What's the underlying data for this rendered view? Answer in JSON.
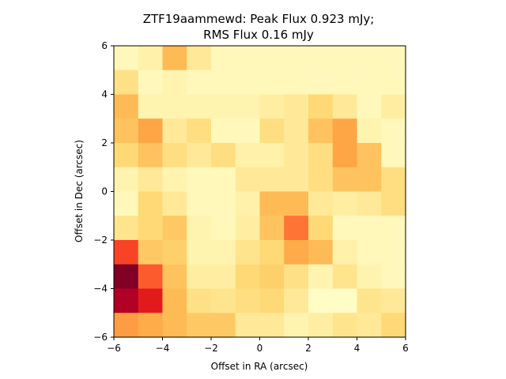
{
  "chart_data": {
    "type": "heatmap",
    "title_line1": "ZTF19aammewd: Peak Flux 0.923 mJy;",
    "title_line2": "RMS Flux 0.16 mJy",
    "xlabel": "Offset in RA (arcsec)",
    "ylabel": "Offset in Dec (arcsec)",
    "xlim": [
      -6,
      6
    ],
    "ylim": [
      -6,
      6
    ],
    "xticks": [
      -6,
      -4,
      -2,
      0,
      2,
      4,
      6
    ],
    "yticks": [
      -6,
      -4,
      -2,
      0,
      2,
      4,
      6
    ],
    "xtick_labels": [
      "−6",
      "−4",
      "−2",
      "0",
      "2",
      "4",
      "6"
    ],
    "ytick_labels": [
      "−6",
      "−4",
      "−2",
      "0",
      "2",
      "4",
      "6"
    ],
    "colormap": "YlOrRd",
    "grid": false,
    "z_rows_top_to_bottom": [
      [
        0.05,
        0.1,
        0.35,
        0.15,
        0.05,
        0.05,
        0.05,
        0.05,
        0.05,
        0.05,
        0.05,
        0.05
      ],
      [
        0.2,
        0.05,
        0.08,
        0.05,
        0.05,
        0.05,
        0.05,
        0.05,
        0.05,
        0.05,
        0.05,
        0.05
      ],
      [
        0.35,
        0.08,
        0.08,
        0.08,
        0.08,
        0.08,
        0.12,
        0.15,
        0.25,
        0.15,
        0.05,
        0.12
      ],
      [
        0.32,
        0.42,
        0.15,
        0.22,
        0.05,
        0.05,
        0.22,
        0.15,
        0.32,
        0.42,
        0.08,
        0.05
      ],
      [
        0.25,
        0.32,
        0.22,
        0.15,
        0.22,
        0.1,
        0.1,
        0.15,
        0.22,
        0.42,
        0.32,
        0.05
      ],
      [
        0.08,
        0.15,
        0.08,
        0.05,
        0.05,
        0.15,
        0.15,
        0.15,
        0.22,
        0.32,
        0.32,
        0.22
      ],
      [
        0.05,
        0.25,
        0.15,
        0.05,
        0.05,
        0.1,
        0.35,
        0.35,
        0.15,
        0.12,
        0.15,
        0.22
      ],
      [
        0.18,
        0.25,
        0.3,
        0.08,
        0.05,
        0.12,
        0.32,
        0.55,
        0.25,
        0.05,
        0.05,
        0.05
      ],
      [
        0.65,
        0.3,
        0.28,
        0.08,
        0.08,
        0.18,
        0.25,
        0.4,
        0.35,
        0.1,
        0.05,
        0.05
      ],
      [
        1.0,
        0.6,
        0.32,
        0.12,
        0.12,
        0.25,
        0.28,
        0.2,
        0.08,
        0.18,
        0.08,
        0.05
      ],
      [
        0.9,
        0.75,
        0.35,
        0.2,
        0.18,
        0.22,
        0.25,
        0.15,
        0.02,
        0.02,
        0.18,
        0.15
      ],
      [
        0.45,
        0.4,
        0.35,
        0.3,
        0.3,
        0.15,
        0.15,
        0.08,
        0.12,
        0.18,
        0.15,
        0.25
      ]
    ]
  }
}
